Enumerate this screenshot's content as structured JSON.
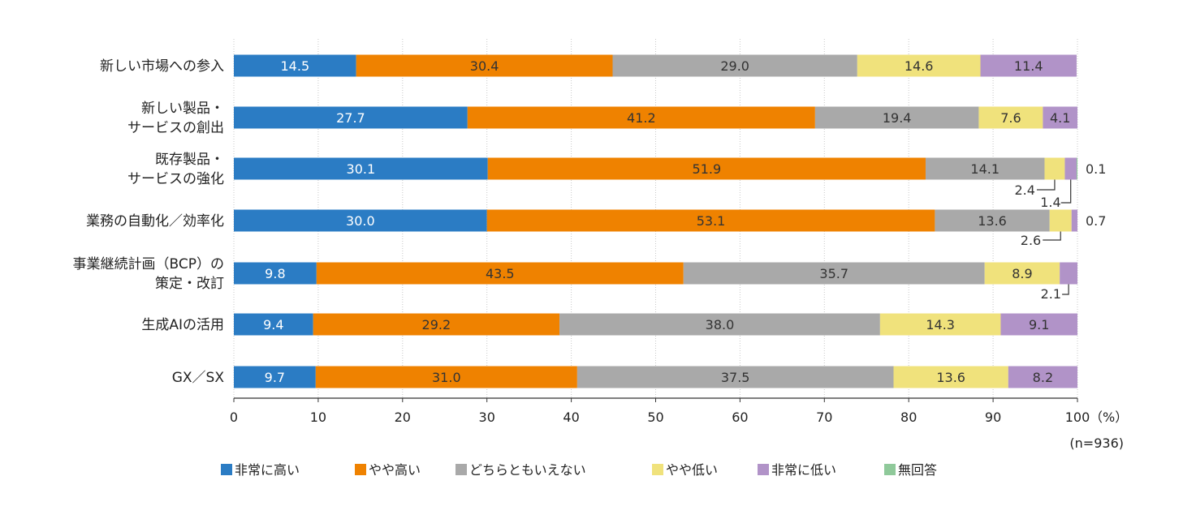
{
  "chart_data": {
    "type": "bar",
    "orientation": "horizontal",
    "stacked": true,
    "categories": [
      [
        "新しい市場への参入"
      ],
      [
        "新しい製品・",
        "サービスの創出"
      ],
      [
        "既存製品・",
        "サービスの強化"
      ],
      [
        "業務の自動化／効率化"
      ],
      [
        "事業継続計画（BCP）の",
        "策定・改訂"
      ],
      [
        "生成AIの活用"
      ],
      [
        "GX／SX"
      ]
    ],
    "series": [
      {
        "name": "非常に高い",
        "color": "#2b7cc4",
        "values": [
          14.5,
          27.7,
          30.1,
          30.0,
          9.8,
          9.4,
          9.7
        ]
      },
      {
        "name": "やや高い",
        "color": "#ef8200",
        "values": [
          30.4,
          41.2,
          51.9,
          53.1,
          43.5,
          29.2,
          31.0
        ]
      },
      {
        "name": "どちらともいえない",
        "color": "#a9a9a9",
        "values": [
          29.0,
          19.4,
          14.1,
          13.6,
          35.7,
          38.0,
          37.5
        ]
      },
      {
        "name": "やや低い",
        "color": "#f0e27c",
        "values": [
          14.6,
          7.6,
          2.4,
          2.6,
          8.9,
          14.3,
          13.6
        ]
      },
      {
        "name": "非常に低い",
        "color": "#b193c8",
        "values": [
          11.4,
          4.1,
          1.4,
          0.7,
          2.1,
          9.1,
          8.2
        ]
      },
      {
        "name": "無回答",
        "color": "#8fc99a",
        "values": [
          0.0,
          0.0,
          0.1,
          0.0,
          0.0,
          0.0,
          0.0
        ]
      }
    ],
    "callouts": [
      {
        "category": 2,
        "series": 3,
        "label": "2.4"
      },
      {
        "category": 2,
        "series": 4,
        "label": "1.4"
      },
      {
        "category": 2,
        "series": 5,
        "label": "0.1"
      },
      {
        "category": 3,
        "series": 3,
        "label": "2.6"
      },
      {
        "category": 3,
        "series": 4,
        "label": "0.7"
      },
      {
        "category": 4,
        "series": 4,
        "label": "2.1"
      }
    ],
    "xlim": [
      0,
      100
    ],
    "xticks": [
      "0",
      "10",
      "20",
      "30",
      "40",
      "50",
      "60",
      "70",
      "80",
      "90",
      "100"
    ],
    "unit_label": "（%）",
    "sample_size": "(n=936)",
    "grid": true,
    "legend_position": "bottom"
  }
}
